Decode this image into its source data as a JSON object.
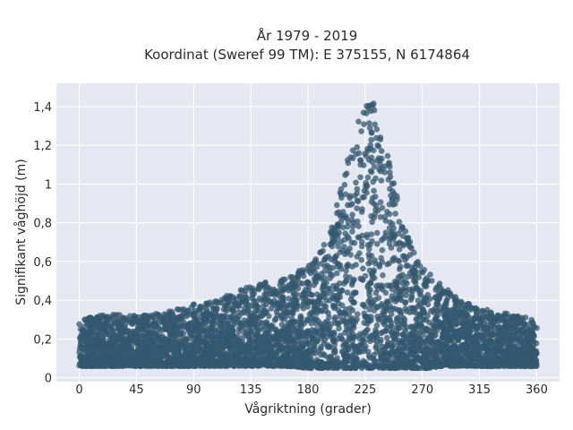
{
  "chart_data": {
    "type": "scatter",
    "title_line1": "År 1979 - 2019",
    "title_line2": "Koordinat (Sweref 99 TM): E 375155, N 6174864",
    "xlabel": "Vågriktning (grader)",
    "ylabel": "Signifikant våghöjd (m)",
    "xlim": [
      -18,
      378
    ],
    "ylim": [
      -0.02,
      1.52
    ],
    "x_ticks": [
      0,
      45,
      90,
      135,
      180,
      225,
      270,
      315,
      360
    ],
    "x_tick_labels": [
      "0",
      "45",
      "90",
      "135",
      "180",
      "225",
      "270",
      "315",
      "360"
    ],
    "y_ticks": [
      0,
      0.2,
      0.4,
      0.6,
      0.8,
      1.0,
      1.2,
      1.4
    ],
    "y_tick_labels": [
      "0",
      "0,2",
      "0,4",
      "0,6",
      "0,8",
      "1",
      "1,2",
      "1,4"
    ],
    "grid": true,
    "plot_bg": "#e5e8f0",
    "marker_color": "#34586f",
    "envelope": {
      "x": [
        0,
        15,
        30,
        45,
        60,
        75,
        90,
        105,
        120,
        135,
        150,
        165,
        180,
        195,
        205,
        215,
        225,
        235,
        245,
        255,
        265,
        275,
        285,
        300,
        315,
        330,
        345,
        360
      ],
      "lower": [
        0.06,
        0.06,
        0.06,
        0.06,
        0.06,
        0.06,
        0.06,
        0.06,
        0.06,
        0.06,
        0.06,
        0.06,
        0.05,
        0.05,
        0.05,
        0.05,
        0.05,
        0.05,
        0.05,
        0.05,
        0.05,
        0.05,
        0.06,
        0.06,
        0.06,
        0.06,
        0.06,
        0.06
      ],
      "upper": [
        0.3,
        0.32,
        0.33,
        0.32,
        0.33,
        0.35,
        0.38,
        0.4,
        0.44,
        0.48,
        0.5,
        0.52,
        0.58,
        0.72,
        0.95,
        1.25,
        1.45,
        1.4,
        1.1,
        0.8,
        0.62,
        0.55,
        0.48,
        0.4,
        0.36,
        0.34,
        0.32,
        0.3
      ]
    }
  }
}
